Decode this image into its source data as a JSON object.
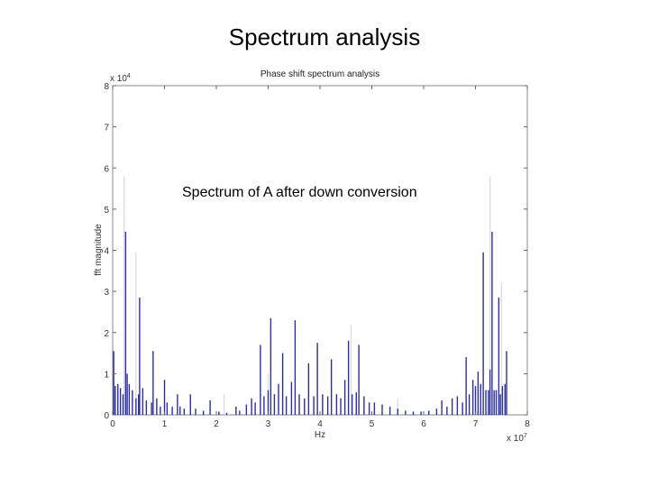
{
  "slide": {
    "title": "Spectrum analysis"
  },
  "annotation": "Spectrum of A after down conversion",
  "chart_data": {
    "type": "bar",
    "title": "Phase shift spectrum analysis",
    "xlabel": "Hz",
    "ylabel": "fft magnitude",
    "x_multiplier_label": "x 10",
    "x_multiplier_exponent": "7",
    "y_multiplier_label": "x 10",
    "y_multiplier_exponent": "4",
    "xlim": [
      0,
      8
    ],
    "ylim": [
      0,
      8
    ],
    "x_ticks": [
      "0",
      "1",
      "2",
      "3",
      "4",
      "5",
      "6",
      "7",
      "8"
    ],
    "y_ticks": [
      "0",
      "1",
      "2",
      "3",
      "4",
      "5",
      "6",
      "7",
      "8"
    ],
    "grid": false,
    "bar_color": "#2b2f9e",
    "ghost_color": "#d8d8e6",
    "series": [
      {
        "values": [
          {
            "x": 0.02,
            "y": 1.55
          },
          {
            "x": 0.05,
            "y": 0.7
          },
          {
            "x": 0.1,
            "y": 0.75
          },
          {
            "x": 0.15,
            "y": 0.65
          },
          {
            "x": 0.2,
            "y": 0.5
          },
          {
            "x": 0.25,
            "y": 4.45
          },
          {
            "x": 0.28,
            "y": 1.0
          },
          {
            "x": 0.32,
            "y": 0.75
          },
          {
            "x": 0.38,
            "y": 0.6
          },
          {
            "x": 0.45,
            "y": 0.4
          },
          {
            "x": 0.5,
            "y": 0.5
          },
          {
            "x": 0.52,
            "y": 2.85
          },
          {
            "x": 0.58,
            "y": 0.65
          },
          {
            "x": 0.65,
            "y": 0.35
          },
          {
            "x": 0.75,
            "y": 0.3
          },
          {
            "x": 0.78,
            "y": 1.55
          },
          {
            "x": 0.85,
            "y": 0.4
          },
          {
            "x": 0.92,
            "y": 0.2
          },
          {
            "x": 1.0,
            "y": 0.85
          },
          {
            "x": 1.05,
            "y": 0.3
          },
          {
            "x": 1.15,
            "y": 0.2
          },
          {
            "x": 1.25,
            "y": 0.5
          },
          {
            "x": 1.3,
            "y": 0.2
          },
          {
            "x": 1.38,
            "y": 0.15
          },
          {
            "x": 1.5,
            "y": 0.5
          },
          {
            "x": 1.6,
            "y": 0.15
          },
          {
            "x": 1.75,
            "y": 0.1
          },
          {
            "x": 1.88,
            "y": 0.35
          },
          {
            "x": 2.05,
            "y": 0.08
          },
          {
            "x": 2.2,
            "y": 0.05
          },
          {
            "x": 2.38,
            "y": 0.2
          },
          {
            "x": 2.45,
            "y": 0.1
          },
          {
            "x": 2.58,
            "y": 0.25
          },
          {
            "x": 2.68,
            "y": 0.4
          },
          {
            "x": 2.75,
            "y": 0.3
          },
          {
            "x": 2.85,
            "y": 1.7
          },
          {
            "x": 2.92,
            "y": 0.45
          },
          {
            "x": 3.0,
            "y": 0.6
          },
          {
            "x": 3.05,
            "y": 2.35
          },
          {
            "x": 3.12,
            "y": 0.5
          },
          {
            "x": 3.2,
            "y": 0.75
          },
          {
            "x": 3.28,
            "y": 1.5
          },
          {
            "x": 3.35,
            "y": 0.45
          },
          {
            "x": 3.45,
            "y": 0.8
          },
          {
            "x": 3.52,
            "y": 2.3
          },
          {
            "x": 3.6,
            "y": 0.5
          },
          {
            "x": 3.7,
            "y": 0.4
          },
          {
            "x": 3.78,
            "y": 1.25
          },
          {
            "x": 3.88,
            "y": 0.45
          },
          {
            "x": 3.95,
            "y": 1.75
          },
          {
            "x": 4.05,
            "y": 0.5
          },
          {
            "x": 4.15,
            "y": 0.45
          },
          {
            "x": 4.22,
            "y": 1.35
          },
          {
            "x": 4.32,
            "y": 0.5
          },
          {
            "x": 4.4,
            "y": 0.4
          },
          {
            "x": 4.48,
            "y": 0.85
          },
          {
            "x": 4.55,
            "y": 1.8
          },
          {
            "x": 4.62,
            "y": 0.5
          },
          {
            "x": 4.7,
            "y": 0.55
          },
          {
            "x": 4.75,
            "y": 1.7
          },
          {
            "x": 4.85,
            "y": 0.45
          },
          {
            "x": 4.95,
            "y": 0.3
          },
          {
            "x": 5.05,
            "y": 0.3
          },
          {
            "x": 5.2,
            "y": 0.25
          },
          {
            "x": 5.35,
            "y": 0.2
          },
          {
            "x": 5.5,
            "y": 0.15
          },
          {
            "x": 5.65,
            "y": 0.1
          },
          {
            "x": 5.8,
            "y": 0.08
          },
          {
            "x": 5.95,
            "y": 0.08
          },
          {
            "x": 6.1,
            "y": 0.1
          },
          {
            "x": 6.25,
            "y": 0.15
          },
          {
            "x": 6.35,
            "y": 0.35
          },
          {
            "x": 6.45,
            "y": 0.2
          },
          {
            "x": 6.55,
            "y": 0.4
          },
          {
            "x": 6.65,
            "y": 0.45
          },
          {
            "x": 6.75,
            "y": 0.3
          },
          {
            "x": 6.82,
            "y": 1.4
          },
          {
            "x": 6.88,
            "y": 0.5
          },
          {
            "x": 6.95,
            "y": 0.85
          },
          {
            "x": 7.0,
            "y": 0.7
          },
          {
            "x": 7.05,
            "y": 1.05
          },
          {
            "x": 7.1,
            "y": 0.75
          },
          {
            "x": 7.15,
            "y": 3.95
          },
          {
            "x": 7.2,
            "y": 0.6
          },
          {
            "x": 7.25,
            "y": 0.6
          },
          {
            "x": 7.28,
            "y": 1.1
          },
          {
            "x": 7.32,
            "y": 4.45
          },
          {
            "x": 7.36,
            "y": 0.6
          },
          {
            "x": 7.4,
            "y": 0.6
          },
          {
            "x": 7.45,
            "y": 2.85
          },
          {
            "x": 7.48,
            "y": 0.5
          },
          {
            "x": 7.52,
            "y": 0.7
          },
          {
            "x": 7.57,
            "y": 0.75
          },
          {
            "x": 7.6,
            "y": 1.55
          }
        ]
      }
    ],
    "ghost_values": [
      {
        "x": 0.22,
        "y": 5.8
      },
      {
        "x": 0.45,
        "y": 3.95
      },
      {
        "x": 7.28,
        "y": 5.8
      },
      {
        "x": 7.5,
        "y": 3.2
      },
      {
        "x": 2.15,
        "y": 0.5
      },
      {
        "x": 4.6,
        "y": 2.2
      },
      {
        "x": 3.0,
        "y": 1.0
      },
      {
        "x": 5.5,
        "y": 0.4
      }
    ]
  }
}
